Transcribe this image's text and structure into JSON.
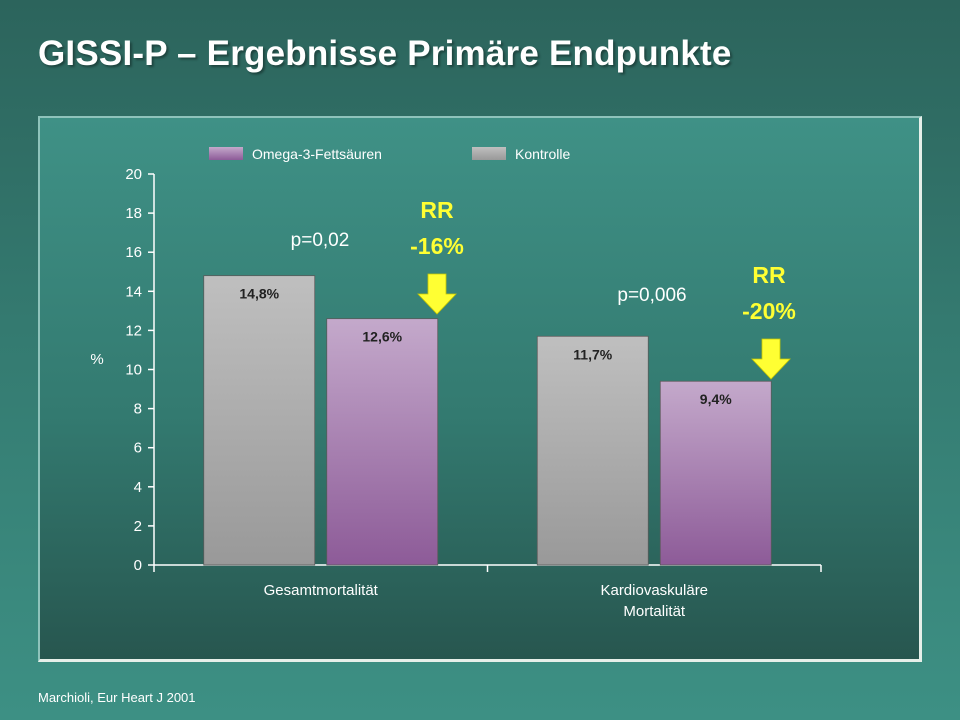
{
  "slide": {
    "title": "GISSI-P – Ergebnisse Primäre Endpunkte",
    "source": "Marchioli, Eur Heart J 2001"
  },
  "colors": {
    "text": "#ffffff",
    "highlight": "#ffff33",
    "arrow": "#ffff33",
    "omega_top": "#c4a9cb",
    "omega_bottom": "#8d5b98",
    "kontrolle_top": "#bfbfbf",
    "kontrolle_bottom": "#999999"
  },
  "annotations": [
    {
      "p_value": "p=0,02",
      "rr_label": "RR",
      "rr_value": "-16%"
    },
    {
      "p_value": "p=0,006",
      "rr_label": "RR",
      "rr_value": "-20%"
    }
  ],
  "chart_data": {
    "type": "bar",
    "title": "",
    "xlabel": "",
    "ylabel": "%",
    "ylim": [
      0,
      20
    ],
    "yticks": [
      0,
      2,
      4,
      6,
      8,
      10,
      12,
      14,
      16,
      18,
      20
    ],
    "categories": [
      "Gesamtmortalität",
      "Kardiovaskuläre Mortalität"
    ],
    "category_lines": [
      [
        "Gesamtmortalität"
      ],
      [
        "Kardiovaskuläre",
        "Mortalität"
      ]
    ],
    "legend_position": "top",
    "grid": false,
    "series": [
      {
        "name": "Kontrolle",
        "values": [
          14.8,
          11.7
        ],
        "labels": [
          "14,8%",
          "11,7%"
        ]
      },
      {
        "name": "Omega-3-Fettsäuren",
        "values": [
          12.6,
          9.4
        ],
        "labels": [
          "12,6%",
          "9,4%"
        ]
      }
    ],
    "legend": [
      "Omega-3-Fettsäuren",
      "Kontrolle"
    ]
  }
}
